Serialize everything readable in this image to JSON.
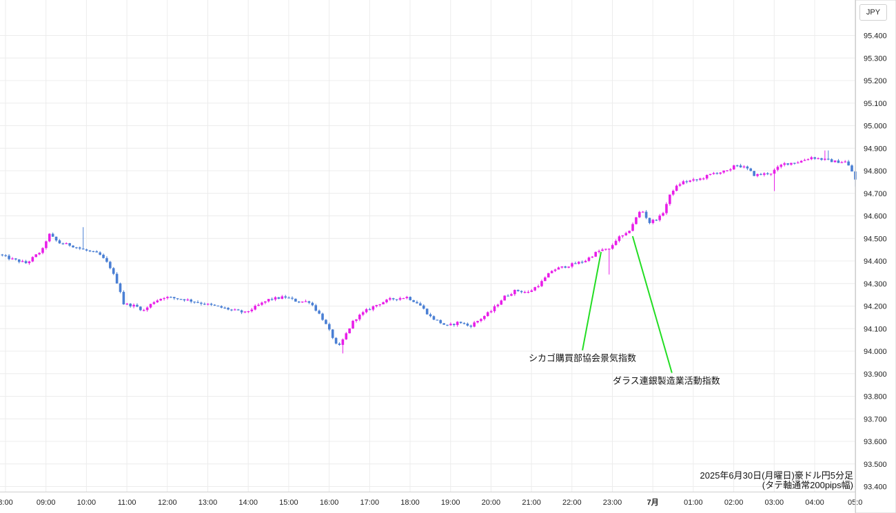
{
  "currency_label": "JPY",
  "caption": {
    "line1": "2025年6月30日(月曜日)豪ドル円5分足",
    "line2": "(タテ軸通常200pips幅)"
  },
  "colors": {
    "up": "#e81ee8",
    "down": "#4a7fd4",
    "grid": "#ececec",
    "annotation_line": "#22dd22",
    "axis_border": "#cfcfcf"
  },
  "chart_data": {
    "type": "candlestick",
    "title": "2025年6月30日(月曜日)豪ドル円5分足",
    "subtitle": "(タテ軸通常200pips幅)",
    "y_axis_position": "right",
    "ylim": [
      93.38,
      95.48
    ],
    "y_ticks": [
      "95.400",
      "95.300",
      "95.200",
      "95.100",
      "95.000",
      "94.900",
      "94.800",
      "94.700",
      "94.600",
      "94.500",
      "94.400",
      "94.300",
      "94.200",
      "94.100",
      "94.000",
      "93.900",
      "93.800",
      "93.700",
      "93.600",
      "93.500",
      "93.400"
    ],
    "x_ticks": [
      {
        "label": "8:00",
        "hour": 8
      },
      {
        "label": "09:00",
        "hour": 9
      },
      {
        "label": "10:00",
        "hour": 10
      },
      {
        "label": "11:00",
        "hour": 11
      },
      {
        "label": "12:00",
        "hour": 12
      },
      {
        "label": "13:00",
        "hour": 13
      },
      {
        "label": "14:00",
        "hour": 14
      },
      {
        "label": "15:00",
        "hour": 15
      },
      {
        "label": "16:00",
        "hour": 16
      },
      {
        "label": "17:00",
        "hour": 17
      },
      {
        "label": "18:00",
        "hour": 18
      },
      {
        "label": "19:00",
        "hour": 19
      },
      {
        "label": "20:00",
        "hour": 20
      },
      {
        "label": "21:00",
        "hour": 21
      },
      {
        "label": "22:00",
        "hour": 22
      },
      {
        "label": "23:00",
        "hour": 23
      },
      {
        "label": "7月",
        "hour": 24,
        "bold": true
      },
      {
        "label": "01:00",
        "hour": 25
      },
      {
        "label": "02:00",
        "hour": 26
      },
      {
        "label": "03:00",
        "hour": 27
      },
      {
        "label": "04:00",
        "hour": 28
      },
      {
        "label": "05:0",
        "hour": 29
      }
    ],
    "price_anchors": [
      [
        7.9,
        94.43
      ],
      [
        8.2,
        94.41
      ],
      [
        8.6,
        94.39
      ],
      [
        9.0,
        94.45
      ],
      [
        9.15,
        94.52
      ],
      [
        9.4,
        94.48
      ],
      [
        9.7,
        94.47
      ],
      [
        10.0,
        94.45
      ],
      [
        10.2,
        94.44
      ],
      [
        10.4,
        94.43
      ],
      [
        10.65,
        94.38
      ],
      [
        10.9,
        94.28
      ],
      [
        11.0,
        94.21
      ],
      [
        11.3,
        94.2
      ],
      [
        11.5,
        94.18
      ],
      [
        11.75,
        94.22
      ],
      [
        12.0,
        94.24
      ],
      [
        12.5,
        94.23
      ],
      [
        13.0,
        94.21
      ],
      [
        13.5,
        94.19
      ],
      [
        14.0,
        94.17
      ],
      [
        14.3,
        94.2
      ],
      [
        14.6,
        94.23
      ],
      [
        15.0,
        94.24
      ],
      [
        15.3,
        94.22
      ],
      [
        15.6,
        94.22
      ],
      [
        15.9,
        94.15
      ],
      [
        16.15,
        94.07
      ],
      [
        16.3,
        94.01
      ],
      [
        16.45,
        94.06
      ],
      [
        16.7,
        94.14
      ],
      [
        17.0,
        94.18
      ],
      [
        17.3,
        94.21
      ],
      [
        17.6,
        94.23
      ],
      [
        18.0,
        94.24
      ],
      [
        18.3,
        94.21
      ],
      [
        18.6,
        94.15
      ],
      [
        19.0,
        94.11
      ],
      [
        19.3,
        94.13
      ],
      [
        19.55,
        94.11
      ],
      [
        19.8,
        94.14
      ],
      [
        20.1,
        94.18
      ],
      [
        20.4,
        94.24
      ],
      [
        20.7,
        94.27
      ],
      [
        21.0,
        94.26
      ],
      [
        21.3,
        94.3
      ],
      [
        21.6,
        94.36
      ],
      [
        22.0,
        94.38
      ],
      [
        22.4,
        94.4
      ],
      [
        22.7,
        94.44
      ],
      [
        22.85,
        94.45
      ],
      [
        23.0,
        94.45
      ],
      [
        23.2,
        94.5
      ],
      [
        23.45,
        94.52
      ],
      [
        23.6,
        94.57
      ],
      [
        23.8,
        94.63
      ],
      [
        24.0,
        94.57
      ],
      [
        24.3,
        94.6
      ],
      [
        24.55,
        94.71
      ],
      [
        24.8,
        94.75
      ],
      [
        25.2,
        94.76
      ],
      [
        25.6,
        94.79
      ],
      [
        26.0,
        94.8
      ],
      [
        26.1,
        94.83
      ],
      [
        26.4,
        94.81
      ],
      [
        26.6,
        94.78
      ],
      [
        27.0,
        94.79
      ],
      [
        27.3,
        94.83
      ],
      [
        27.7,
        94.84
      ],
      [
        28.0,
        94.86
      ],
      [
        28.3,
        94.85
      ],
      [
        28.6,
        94.84
      ],
      [
        28.85,
        94.84
      ],
      [
        29.0,
        94.8
      ],
      [
        29.05,
        94.76
      ]
    ],
    "spikes": [
      [
        9.95,
        94.55,
        "high"
      ],
      [
        16.35,
        93.99,
        "low"
      ],
      [
        22.95,
        94.34,
        "low"
      ],
      [
        27.0,
        94.71,
        "low"
      ],
      [
        28.3,
        94.89,
        "high"
      ],
      [
        29.05,
        94.73,
        "low"
      ]
    ],
    "annotations": [
      {
        "text": "シカゴ購買部協会景気指数",
        "hour": 22.72,
        "price": 94.44,
        "label_price": 93.955
      },
      {
        "text": "ダラス連銀製造業活動指数",
        "hour": 23.5,
        "price": 94.51,
        "label_price": 93.855
      }
    ]
  }
}
